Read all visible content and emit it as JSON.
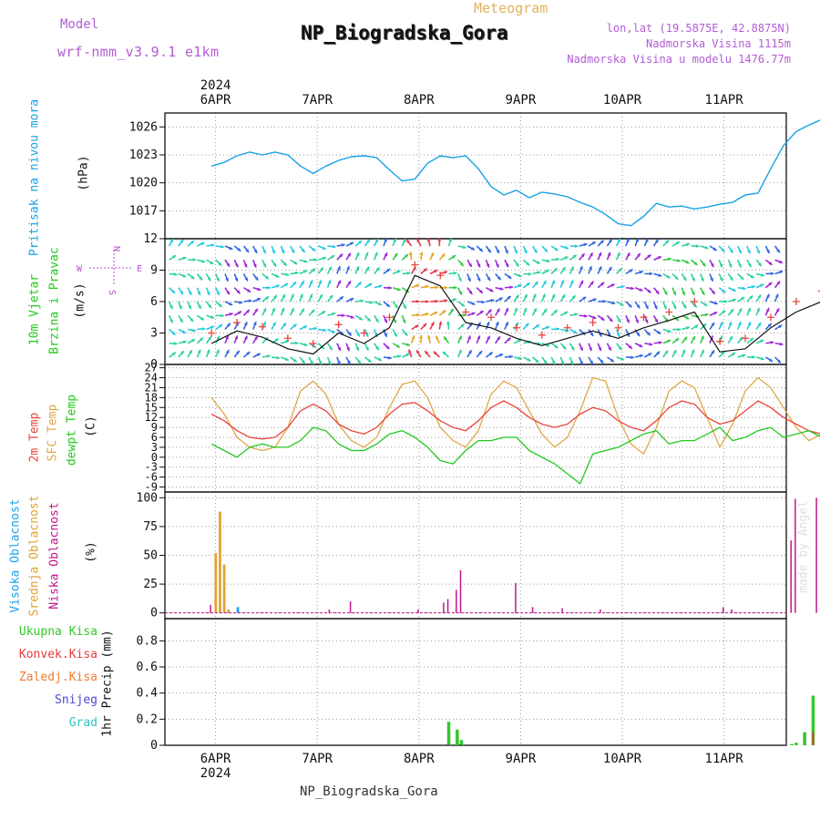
{
  "header": {
    "model_label": "Model",
    "model_name": "wrf-nmm_v3.9.1 e1km",
    "app_title": "Meteogram",
    "station_title": "NP_Biogradska_Gora",
    "coords": "lon,lat (19.5875E, 42.8875N)",
    "elevation": "Nadmorska Visina 1115m",
    "model_elevation": "Nadmorska Visina u modelu 1476.77m",
    "footer_station": "NP_Biogradska_Gora",
    "watermark": "made by Angel"
  },
  "colors": {
    "pressure": "#19a2e6",
    "temp_2m": "#e8463c",
    "temp_sfc": "#dfa84a",
    "dewpoint": "#22c91e",
    "cloud_high": "#1aa4e8",
    "cloud_mid": "#e0a435",
    "cloud_low": "#c0178c",
    "precip_total": "#33c72a",
    "precip_conv": "#e93b3b",
    "precip_frozen": "#f07b2f",
    "snow": "#4b49d6",
    "hail": "#2ec3c3",
    "wind_label": "#22c91e",
    "wind_dir_label": "#b84fd0",
    "header_purple": "#b35cd6",
    "header_gold": "#dfb35a",
    "grid": "#9a9a9a"
  },
  "chart_data": [
    {
      "type": "line",
      "panel": "pressure",
      "ylabel": [
        "Pritisak na nivou mora",
        "(hPa)"
      ],
      "xlabels_top": [
        "6APR",
        "7APR",
        "8APR",
        "9APR",
        "10APR",
        "11APR"
      ],
      "year_top": "2024",
      "ylim": [
        1014,
        1027.5
      ],
      "yticks": [
        1017,
        1020,
        1023,
        1026
      ],
      "x_hours": [
        0,
        3,
        6,
        9,
        12,
        15,
        18,
        21,
        24,
        27,
        30,
        33,
        36,
        39,
        42,
        45,
        48,
        51,
        54,
        57,
        60,
        63,
        66,
        69,
        72,
        75,
        78,
        81,
        84,
        87,
        90,
        93,
        96,
        99,
        102,
        105,
        108,
        111,
        114,
        117,
        120,
        123,
        126,
        129,
        132,
        135,
        138,
        141,
        144,
        147,
        150,
        153
      ],
      "x_note": "hours since 5APR 13:00",
      "values": [
        1021.8,
        1022.2,
        1022.9,
        1023.3,
        1023.0,
        1023.3,
        1023.0,
        1021.8,
        1021.0,
        1021.8,
        1022.4,
        1022.8,
        1022.9,
        1022.7,
        1021.4,
        1020.2,
        1020.4,
        1022.1,
        1022.9,
        1022.7,
        1022.9,
        1021.5,
        1019.6,
        1018.7,
        1019.2,
        1018.4,
        1019.0,
        1018.8,
        1018.5,
        1017.9,
        1017.4,
        1016.6,
        1015.6,
        1015.4,
        1016.4,
        1017.8,
        1017.4,
        1017.5,
        1017.2,
        1017.4,
        1017.7,
        1017.9,
        1018.7,
        1018.9,
        1021.5,
        1024.0,
        1025.5,
        1026.2,
        1026.8,
        1026.6,
        1026.5,
        1026.0
      ]
    },
    {
      "type": "line",
      "panel": "wind",
      "ylabel": [
        "10m Vjetar",
        "Brzina i Pravac",
        "(m/s)"
      ],
      "compass": {
        "n": "N",
        "s": "S",
        "e": "E",
        "w": "W"
      },
      "ylim": [
        0,
        12
      ],
      "yticks": [
        0,
        3,
        6,
        9,
        12
      ],
      "x_hours": [
        0,
        6,
        12,
        18,
        24,
        30,
        36,
        42,
        48,
        54,
        60,
        66,
        72,
        78,
        84,
        90,
        96,
        102,
        108,
        114,
        120,
        126,
        132,
        138,
        144,
        150,
        153
      ],
      "series": [
        {
          "name": "speed",
          "values": [
            2.0,
            3.2,
            2.6,
            1.5,
            1.0,
            3.0,
            2.0,
            3.5,
            8.5,
            7.5,
            4.0,
            3.5,
            2.5,
            1.8,
            2.5,
            3.2,
            2.5,
            3.5,
            4.2,
            5.0,
            1.2,
            1.5,
            3.5,
            5.0,
            6.0,
            7.5,
            8.0
          ]
        },
        {
          "name": "gust",
          "values": [
            3.0,
            4.0,
            3.6,
            2.5,
            2.0,
            3.8,
            3.0,
            4.5,
            9.5,
            8.5,
            5.0,
            4.5,
            3.5,
            2.8,
            3.5,
            4.0,
            3.5,
            4.5,
            5.0,
            6.0,
            2.2,
            2.5,
            4.5,
            6.0,
            7.0,
            8.5,
            9.0
          ]
        }
      ]
    },
    {
      "type": "line",
      "panel": "temperature",
      "ylabel": [
        "2m Temp",
        "SFC Temp",
        "dewpt Temp",
        "(C)"
      ],
      "ylim": [
        -10.5,
        28
      ],
      "yticks": [
        -9,
        -6,
        -3,
        0,
        3,
        6,
        9,
        12,
        15,
        18,
        21,
        24,
        27
      ],
      "x_hours": [
        0,
        3,
        6,
        9,
        12,
        15,
        18,
        21,
        24,
        27,
        30,
        33,
        36,
        39,
        42,
        45,
        48,
        51,
        54,
        57,
        60,
        63,
        66,
        69,
        72,
        75,
        78,
        81,
        84,
        87,
        90,
        93,
        96,
        99,
        102,
        105,
        108,
        111,
        114,
        117,
        120,
        123,
        126,
        129,
        132,
        135,
        138,
        141,
        144,
        147,
        150,
        153
      ],
      "series": [
        {
          "name": "2m Temp",
          "values": [
            13,
            11,
            8,
            6,
            5.5,
            6,
            9,
            14,
            16,
            14,
            10,
            8,
            7,
            9,
            13,
            16,
            16.5,
            14,
            11,
            9,
            8,
            11,
            15,
            17,
            15,
            12,
            10,
            9,
            10,
            13,
            15,
            14,
            11,
            9,
            8,
            11,
            15,
            17,
            16,
            12,
            10,
            11,
            14,
            17,
            15,
            12,
            10,
            8,
            7,
            9,
            13,
            15
          ]
        },
        {
          "name": "SFC Temp",
          "values": [
            18,
            13,
            6,
            3,
            2,
            3,
            9,
            20,
            23,
            19,
            10,
            5,
            3,
            6,
            15,
            22,
            23,
            18,
            9,
            5,
            3,
            8,
            19,
            23,
            21,
            14,
            7,
            3,
            6,
            14,
            24,
            23,
            12,
            4,
            1,
            9,
            20,
            23,
            21,
            12,
            3,
            10,
            20,
            24,
            21,
            15,
            9,
            5,
            7,
            13,
            20,
            23
          ]
        },
        {
          "name": "dewpt Temp",
          "values": [
            4,
            2,
            0,
            3,
            4,
            3,
            3,
            5,
            9,
            8,
            4,
            2,
            2,
            4,
            7,
            8,
            6,
            3,
            -1,
            -2,
            2,
            5,
            5,
            6,
            6,
            2,
            0,
            -2,
            -5,
            -8,
            1,
            2,
            3,
            5,
            7,
            8,
            4,
            5,
            5,
            7,
            9,
            5,
            6,
            8,
            9,
            6,
            7,
            8,
            6,
            5,
            7,
            9
          ]
        }
      ]
    },
    {
      "type": "bar",
      "panel": "clouds",
      "ylabel": [
        "Visoka Oblacnost",
        "Srednja Oblacnost",
        "Niska Oblacnost",
        "(%)"
      ],
      "ylim": [
        -5,
        105
      ],
      "yticks": [
        0,
        25,
        50,
        75,
        100
      ],
      "series": [
        {
          "name": "Visoka Oblacnost",
          "hours": [
            6,
            144,
            145,
            146
          ],
          "values": [
            5,
            100,
            100,
            45
          ]
        },
        {
          "name": "Srednja Oblacnost",
          "hours": [
            1,
            2,
            3,
            4
          ],
          "values": [
            52,
            88,
            42,
            3
          ]
        },
        {
          "name": "Niska Oblacnost",
          "hours": [
            0,
            28,
            33,
            49,
            55,
            56,
            58,
            59,
            72,
            76,
            83,
            92,
            121,
            123,
            137,
            138,
            143,
            144,
            160,
            163
          ],
          "values": [
            7,
            3,
            10,
            3,
            9,
            12,
            20,
            37,
            26,
            5,
            4,
            3,
            5,
            3,
            63,
            99,
            100,
            100,
            18,
            3
          ]
        }
      ]
    },
    {
      "type": "bar",
      "panel": "precipitation",
      "ylabel": [
        "1hr Precip (mm)"
      ],
      "legend": [
        "Ukupna Kisa",
        "Konvek.Kisa",
        "Zaledj.Kisa",
        "Snijeg",
        "Grad"
      ],
      "xlabels_bottom": [
        "6APR",
        "7APR",
        "8APR",
        "9APR",
        "10APR",
        "11APR"
      ],
      "year_bottom": "2024",
      "ylim": [
        0,
        0.97
      ],
      "yticks": [
        0,
        0.2,
        0.4,
        0.6,
        0.8
      ],
      "series": [
        {
          "name": "Ukupna Kisa",
          "hours": [
            56,
            58,
            59,
            137,
            138,
            140,
            142
          ],
          "values": [
            0.18,
            0.12,
            0.04,
            0.01,
            0.02,
            0.1,
            0.38
          ]
        },
        {
          "name": "Konvek.Kisa",
          "hours": [
            142
          ],
          "values": [
            0.1
          ]
        }
      ]
    }
  ]
}
